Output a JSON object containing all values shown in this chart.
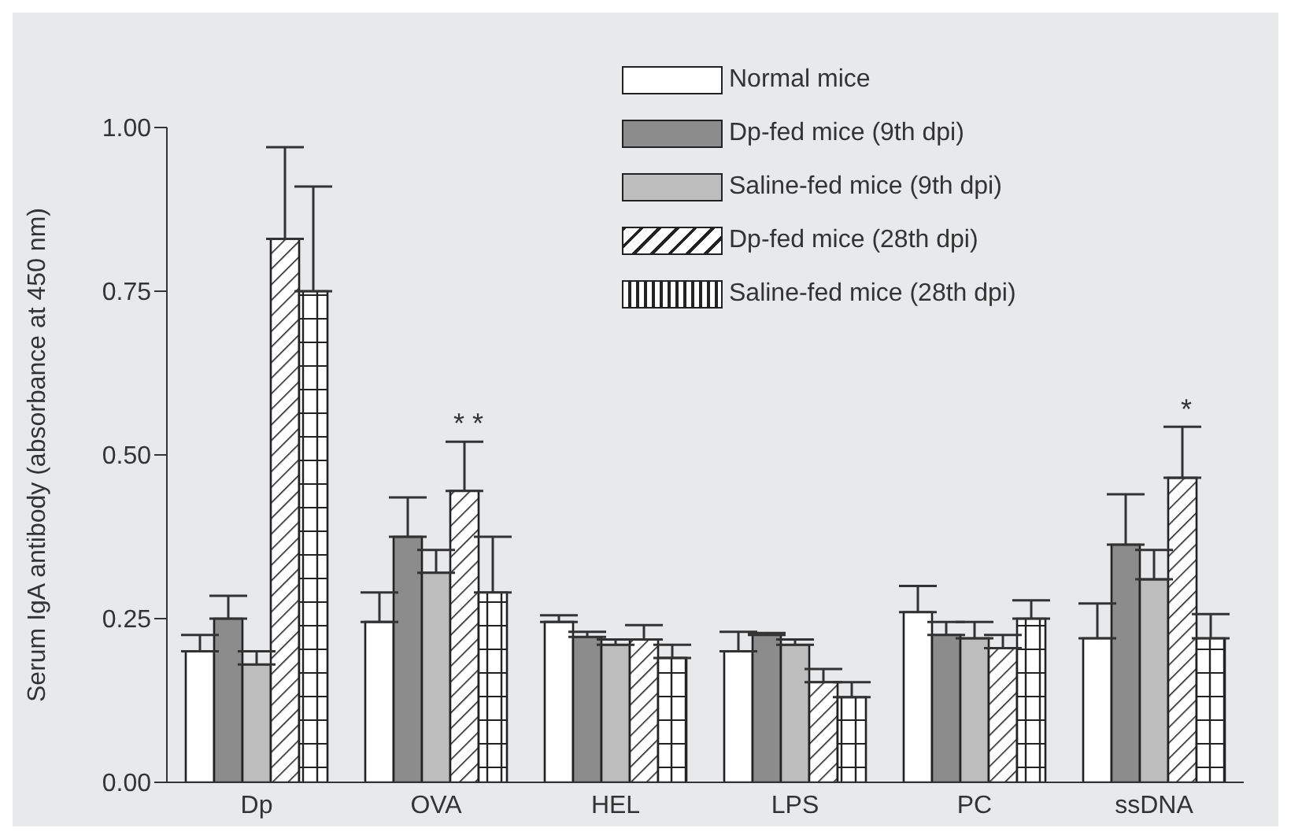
{
  "chart_data": {
    "type": "bar",
    "ylabel": "Serum IgA antibody (absorbance at 450 nm)",
    "categories": [
      "Dp",
      "OVA",
      "HEL",
      "LPS",
      "PC",
      "ssDNA"
    ],
    "ylim": [
      0,
      1.0
    ],
    "yticks": [
      {
        "value": 0,
        "label": "0.00"
      },
      {
        "value": 0.25,
        "label": "0.25"
      },
      {
        "value": 0.5,
        "label": "0.50"
      },
      {
        "value": 0.75,
        "label": "0.75"
      },
      {
        "value": 1.0,
        "label": "1.00"
      }
    ],
    "grid": false,
    "legend": "top right",
    "series": [
      {
        "name": "Normal mice",
        "color": "#ffffff",
        "values": [
          0.2,
          0.245,
          0.245,
          0.2,
          0.26,
          0.22
        ],
        "errors": [
          [
            0.2,
            0.225
          ],
          [
            0.245,
            0.29
          ],
          [
            0.245,
            0.255
          ],
          [
            0.2,
            0.23
          ],
          [
            0.26,
            0.3
          ],
          [
            0.22,
            0.273
          ]
        ]
      },
      {
        "name": "Dp-fed mice (9th dpi)",
        "color": "#8c8c8c",
        "values": [
          0.25,
          0.375,
          0.222,
          0.225,
          0.225,
          0.363
        ],
        "errors": [
          [
            0.25,
            0.285
          ],
          [
            0.375,
            0.435
          ],
          [
            0.222,
            0.23
          ],
          [
            0.225,
            0.228
          ],
          [
            0.225,
            0.245
          ],
          [
            0.363,
            0.44
          ]
        ]
      },
      {
        "name": "Saline-fed mice (9th dpi)",
        "color": "#bdbdbd",
        "values": [
          0.18,
          0.32,
          0.21,
          0.21,
          0.22,
          0.31
        ],
        "errors": [
          [
            0.18,
            0.2
          ],
          [
            0.32,
            0.355
          ],
          [
            0.21,
            0.218
          ],
          [
            0.21,
            0.218
          ],
          [
            0.22,
            0.245
          ],
          [
            0.31,
            0.355
          ]
        ]
      },
      {
        "name": "Dp-fed mice (28th dpi)",
        "color": "#222222",
        "values": [
          0.83,
          0.445,
          0.218,
          0.153,
          0.205,
          0.465
        ],
        "errors": [
          [
            0.83,
            0.97
          ],
          [
            0.445,
            0.52
          ],
          [
            0.218,
            0.24
          ],
          [
            0.153,
            0.173
          ],
          [
            0.205,
            0.225
          ],
          [
            0.465,
            0.543
          ]
        ]
      },
      {
        "name": "Saline-fed mice (28th dpi)",
        "color": "#222222",
        "values": [
          0.75,
          0.29,
          0.19,
          0.13,
          0.25,
          0.22
        ],
        "errors": [
          [
            0.75,
            0.91
          ],
          [
            0.29,
            0.375
          ],
          [
            0.19,
            0.21
          ],
          [
            0.13,
            0.153
          ],
          [
            0.25,
            0.278
          ],
          [
            0.22,
            0.257
          ]
        ]
      }
    ],
    "annotations": [
      "* *",
      "*"
    ]
  }
}
